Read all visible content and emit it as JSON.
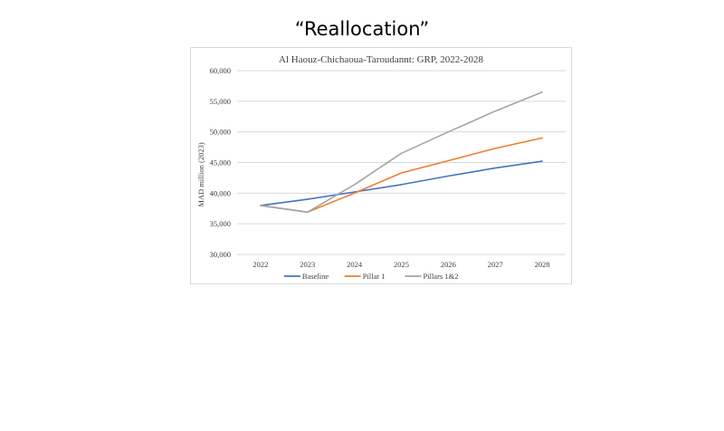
{
  "slide": {
    "title": "“Reallocation”"
  },
  "chart_data": {
    "type": "line",
    "title": "Al Haouz-Chichaoua-Taroudannt: GRP, 2022-2028",
    "xlabel": "",
    "ylabel": "MAD million (2023)",
    "categories": [
      "2022",
      "2023",
      "2024",
      "2025",
      "2026",
      "2027",
      "2028"
    ],
    "ylim": [
      30000,
      60000
    ],
    "yticks": [
      30000,
      35000,
      40000,
      45000,
      50000,
      55000,
      60000
    ],
    "ytick_labels": [
      "30,000",
      "35,000",
      "40,000",
      "45,000",
      "50,000",
      "55,000",
      "60,000"
    ],
    "grid": true,
    "legend_position": "bottom",
    "series": [
      {
        "name": "Baseline",
        "color": "#4472c4",
        "values": [
          38000,
          39000,
          40200,
          41400,
          42800,
          44100,
          45200
        ]
      },
      {
        "name": "Pillar 1",
        "color": "#ed7d31",
        "values": [
          38000,
          36900,
          40000,
          43300,
          45300,
          47300,
          49000
        ]
      },
      {
        "name": "Pillars 1&2",
        "color": "#a5a5a5",
        "values": [
          38000,
          36900,
          41400,
          46500,
          50000,
          53400,
          56500
        ]
      }
    ]
  }
}
